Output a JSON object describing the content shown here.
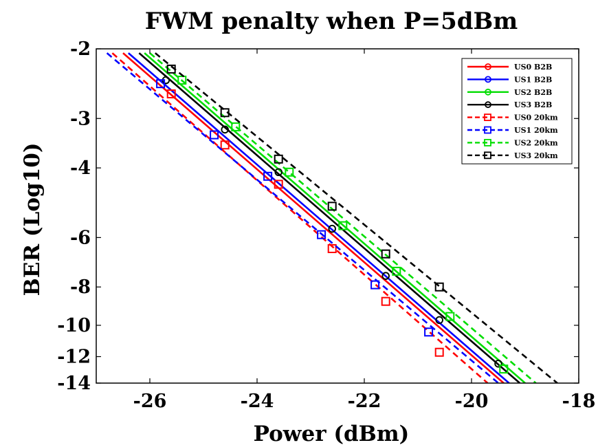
{
  "chart_data": {
    "type": "line",
    "title": "FWM penalty when P=5dBm",
    "xlabel": "Power (dBm)",
    "ylabel": "BER (Log10)",
    "xlim": [
      -27,
      -18
    ],
    "x_ticks": [
      -26,
      -24,
      -22,
      -20,
      -18
    ],
    "y_scale": "log(-log10(BER))",
    "y_ticks": [
      -2,
      -3,
      -4,
      -6,
      -8,
      -10,
      -12,
      -14
    ],
    "y_tick_labels": [
      "-2",
      "-3",
      "-4",
      "-6",
      "-8",
      "-10",
      "-12",
      "-14"
    ],
    "ylim": [
      -2,
      -14
    ],
    "grid": false,
    "legend_position": "top-right",
    "series": [
      {
        "name": "US0 B2B",
        "color": "#ff0000",
        "line_style": "solid",
        "marker": "circle",
        "fit": [
          [
            -26.5,
            -2.05
          ],
          [
            -19.4,
            -14
          ]
        ],
        "points": []
      },
      {
        "name": "US1 B2B",
        "color": "#0000ff",
        "line_style": "solid",
        "marker": "circle",
        "fit": [
          [
            -26.4,
            -2.05
          ],
          [
            -19.3,
            -14
          ]
        ],
        "points": []
      },
      {
        "name": "US2 B2B",
        "color": "#00dd00",
        "line_style": "solid",
        "marker": "circle",
        "fit": [
          [
            -26.1,
            -2.05
          ],
          [
            -19.0,
            -14
          ]
        ],
        "points": [
          [
            -25.7,
            -2.4
          ],
          [
            -24.6,
            -3.2
          ],
          [
            -23.6,
            -4.1
          ],
          [
            -22.6,
            -5.7
          ],
          [
            -21.6,
            -7.5
          ],
          [
            -20.6,
            -9.7
          ],
          [
            -19.5,
            -12.5
          ]
        ]
      },
      {
        "name": "US3 B2B",
        "color": "#000000",
        "line_style": "solid",
        "marker": "circle",
        "fit": [
          [
            -26.2,
            -2.05
          ],
          [
            -19.1,
            -14
          ]
        ],
        "points": [
          [
            -25.7,
            -2.4
          ],
          [
            -24.6,
            -3.2
          ],
          [
            -23.6,
            -4.1
          ],
          [
            -22.6,
            -5.7
          ],
          [
            -21.6,
            -7.5
          ],
          [
            -20.6,
            -9.7
          ],
          [
            -19.5,
            -12.5
          ]
        ]
      },
      {
        "name": "US0 20km",
        "color": "#ff0000",
        "line_style": "dashed",
        "marker": "square",
        "fit": [
          [
            -26.7,
            -2.05
          ],
          [
            -19.7,
            -14
          ]
        ],
        "points": [
          [
            -25.6,
            -2.6
          ],
          [
            -24.6,
            -3.5
          ],
          [
            -23.6,
            -4.4
          ],
          [
            -22.6,
            -6.4
          ],
          [
            -21.6,
            -8.7
          ],
          [
            -20.6,
            -11.7
          ]
        ]
      },
      {
        "name": "US1 20km",
        "color": "#0000ff",
        "line_style": "dashed",
        "marker": "square",
        "fit": [
          [
            -26.8,
            -2.05
          ],
          [
            -19.5,
            -14
          ]
        ],
        "points": [
          [
            -25.8,
            -2.45
          ],
          [
            -24.8,
            -3.3
          ],
          [
            -23.8,
            -4.2
          ],
          [
            -22.8,
            -5.9
          ],
          [
            -21.8,
            -7.9
          ],
          [
            -20.8,
            -10.4
          ]
        ]
      },
      {
        "name": "US2 20km",
        "color": "#00dd00",
        "line_style": "dashed",
        "marker": "square",
        "fit": [
          [
            -26.0,
            -2.05
          ],
          [
            -18.8,
            -14
          ]
        ],
        "points": [
          [
            -25.4,
            -2.4
          ],
          [
            -24.4,
            -3.15
          ],
          [
            -23.4,
            -4.1
          ],
          [
            -22.4,
            -5.6
          ],
          [
            -21.4,
            -7.3
          ],
          [
            -20.4,
            -9.5
          ],
          [
            -19.4,
            -12.9
          ]
        ]
      },
      {
        "name": "US3 20km",
        "color": "#000000",
        "line_style": "dashed",
        "marker": "square",
        "fit": [
          [
            -25.9,
            -2.05
          ],
          [
            -18.4,
            -14
          ]
        ],
        "points": [
          [
            -25.6,
            -2.25
          ],
          [
            -24.6,
            -2.9
          ],
          [
            -23.6,
            -3.8
          ],
          [
            -22.6,
            -5.0
          ],
          [
            -21.6,
            -6.6
          ],
          [
            -20.6,
            -8.0
          ]
        ]
      }
    ]
  }
}
